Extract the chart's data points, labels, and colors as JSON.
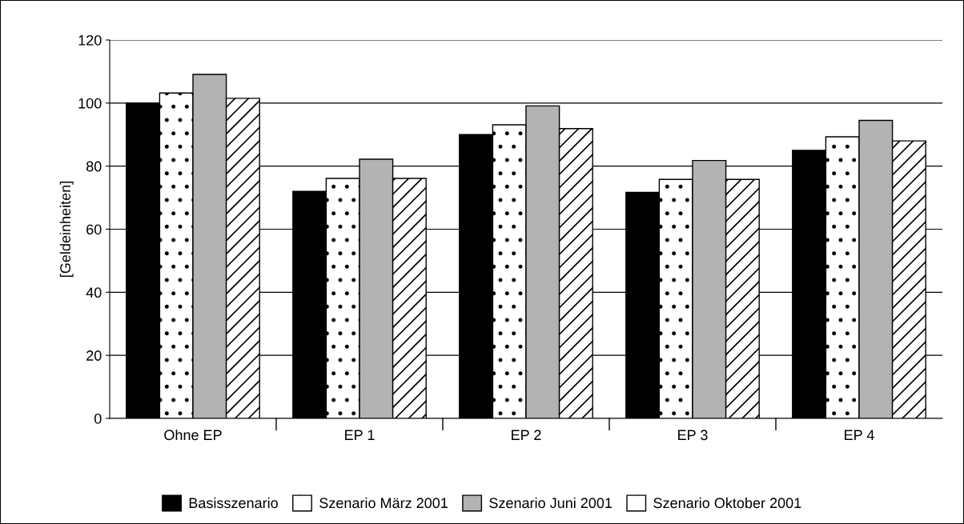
{
  "chart_data": {
    "type": "bar",
    "ylabel": "[Geldeinheiten]",
    "categories": [
      "Ohne EP",
      "EP 1",
      "EP 2",
      "EP 3",
      "EP 4"
    ],
    "series": [
      {
        "name": "Basisszenario",
        "color": "#000000",
        "values": [
          100,
          72,
          90,
          71.7,
          85
        ]
      },
      {
        "name": "Szenario März 2001",
        "color": "#ffffff",
        "values": [
          103.2,
          76.1,
          93.1,
          75.8,
          89.3
        ]
      },
      {
        "name": "Szenario Juni 2001",
        "color": "#b3b3b3",
        "values": [
          109.1,
          82.2,
          99.1,
          81.8,
          94.5
        ]
      },
      {
        "name": "Szenario Oktober 2001",
        "color": "#ffffff",
        "values": [
          101.5,
          76.1,
          91.9,
          75.8,
          88
        ]
      }
    ],
    "ylim": [
      0,
      120
    ],
    "yticks": [
      0,
      20,
      40,
      60,
      80,
      100,
      120
    ],
    "grid": "y",
    "legend": "bottom"
  }
}
